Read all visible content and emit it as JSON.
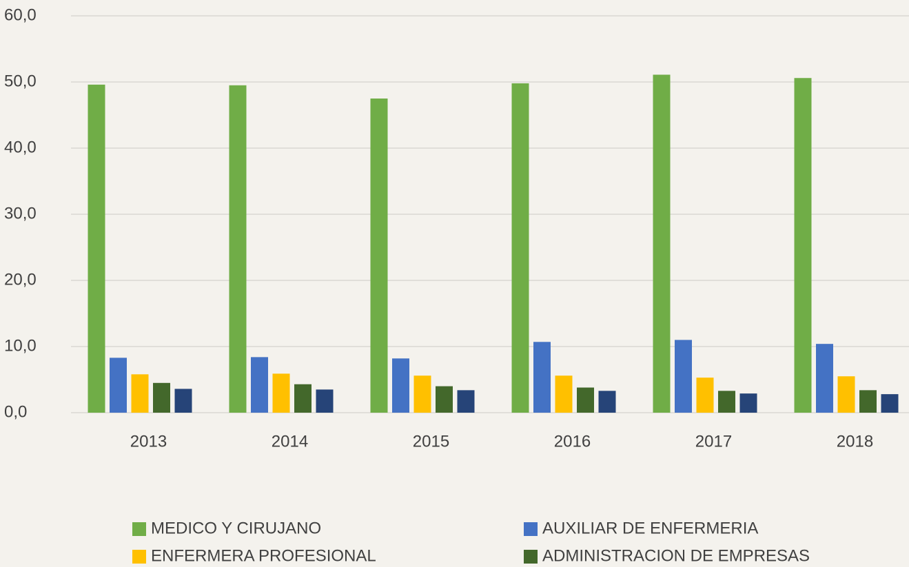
{
  "chart_data": {
    "type": "bar",
    "categories": [
      "2013",
      "2014",
      "2015",
      "2016",
      "2017",
      "2018"
    ],
    "series": [
      {
        "name": "MEDICO Y CIRUJANO",
        "color": "#70ad47",
        "values": [
          49.6,
          49.5,
          47.5,
          49.8,
          51.1,
          50.6
        ]
      },
      {
        "name": "AUXILIAR DE ENFERMERIA",
        "color": "#4472c4",
        "values": [
          8.3,
          8.4,
          8.2,
          10.7,
          11.0,
          10.4
        ]
      },
      {
        "name": "ENFERMERA PROFESIONAL",
        "color": "#ffc000",
        "values": [
          5.8,
          5.9,
          5.6,
          5.6,
          5.3,
          5.5
        ]
      },
      {
        "name": "ADMINISTRACION DE EMPRESAS",
        "color": "#43682b",
        "values": [
          4.5,
          4.3,
          4.0,
          3.8,
          3.3,
          3.4
        ]
      },
      {
        "color": "#264478",
        "values": [
          3.6,
          3.5,
          3.4,
          3.3,
          2.9,
          2.8
        ]
      }
    ],
    "ylim": [
      0,
      60
    ],
    "yticks": [
      {
        "value": 0,
        "label": "0,0"
      },
      {
        "value": 10,
        "label": "10,0"
      },
      {
        "value": 20,
        "label": "20,0"
      },
      {
        "value": 30,
        "label": "30,0"
      },
      {
        "value": 40,
        "label": "40,0"
      },
      {
        "value": 50,
        "label": "50,0"
      },
      {
        "value": 60,
        "label": "60,0"
      }
    ],
    "grid": true,
    "legend": "bottom"
  }
}
